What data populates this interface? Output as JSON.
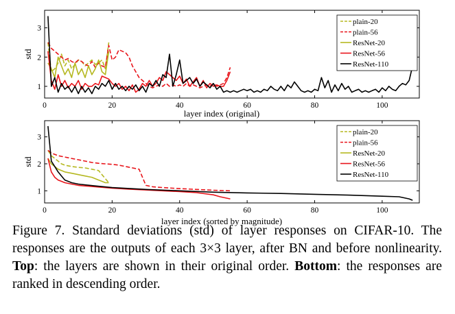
{
  "chart_data": [
    {
      "type": "line",
      "title": "",
      "xlabel": "layer index (original)",
      "ylabel": "std",
      "xlim": [
        0,
        111
      ],
      "ylim": [
        0.6,
        3.6
      ],
      "xticks": [
        0,
        20,
        40,
        60,
        80,
        100
      ],
      "yticks": [
        1,
        2,
        3
      ],
      "legend_position": "top-right",
      "series": [
        {
          "name": "plain-20",
          "color": "#b5b820",
          "dash": "6,3",
          "x": [
            1,
            2,
            3,
            4,
            5,
            6,
            7,
            8,
            9,
            10,
            11,
            12,
            13,
            14,
            15,
            16,
            17,
            18,
            19
          ],
          "y": [
            2.5,
            1.5,
            1.6,
            1.8,
            2.1,
            1.7,
            1.9,
            1.6,
            1.75,
            1.9,
            1.85,
            1.7,
            1.8,
            1.9,
            1.75,
            1.8,
            1.9,
            1.6,
            2.5
          ]
        },
        {
          "name": "plain-56",
          "color": "#e8141a",
          "dash": "6,3",
          "x": [
            1,
            2,
            3,
            4,
            5,
            6,
            7,
            8,
            9,
            10,
            11,
            12,
            13,
            14,
            15,
            16,
            17,
            18,
            19,
            20,
            21,
            22,
            23,
            24,
            25,
            26,
            27,
            28,
            29,
            30,
            31,
            32,
            33,
            34,
            35,
            36,
            37,
            38,
            39,
            40,
            41,
            42,
            43,
            44,
            45,
            46,
            47,
            48,
            49,
            50,
            51,
            52,
            53,
            54,
            55
          ],
          "y": [
            2.5,
            2.3,
            2.2,
            2.1,
            2.0,
            1.9,
            1.95,
            1.85,
            1.8,
            1.9,
            1.85,
            1.75,
            1.7,
            1.85,
            1.65,
            1.8,
            1.7,
            1.65,
            2.4,
            1.9,
            2.0,
            2.25,
            2.2,
            2.15,
            2.0,
            1.7,
            1.5,
            1.3,
            1.2,
            1.1,
            1.0,
            0.95,
            1.0,
            1.05,
            1.0,
            1.1,
            1.0,
            1.05,
            1.0,
            1.05,
            1.0,
            1.1,
            1.0,
            1.05,
            1.0,
            0.95,
            1.0,
            1.05,
            1.0,
            1.1,
            1.0,
            1.05,
            1.1,
            1.3,
            1.65
          ]
        },
        {
          "name": "ResNet-20",
          "color": "#b5b820",
          "dash": "",
          "x": [
            1,
            2,
            3,
            4,
            5,
            6,
            7,
            8,
            9,
            10,
            11,
            12,
            13,
            14,
            15,
            16,
            17,
            18,
            19
          ],
          "y": [
            1.8,
            1.6,
            1.3,
            2.0,
            1.7,
            1.4,
            1.6,
            1.3,
            1.8,
            1.4,
            1.6,
            1.3,
            1.7,
            1.4,
            1.6,
            1.9,
            1.5,
            1.4,
            2.2
          ]
        },
        {
          "name": "ResNet-56",
          "color": "#e8141a",
          "dash": "",
          "x": [
            1,
            2,
            3,
            4,
            5,
            6,
            7,
            8,
            9,
            10,
            11,
            12,
            13,
            14,
            15,
            16,
            17,
            18,
            19,
            20,
            21,
            22,
            23,
            24,
            25,
            26,
            27,
            28,
            29,
            30,
            31,
            32,
            33,
            34,
            35,
            36,
            37,
            38,
            39,
            40,
            41,
            42,
            43,
            44,
            45,
            46,
            47,
            48,
            49,
            50,
            51,
            52,
            53,
            54,
            55
          ],
          "y": [
            2.2,
            1.2,
            0.9,
            1.4,
            1.0,
            1.2,
            0.95,
            1.1,
            1.0,
            1.2,
            0.9,
            1.1,
            1.0,
            1.0,
            1.1,
            1.05,
            1.35,
            1.3,
            1.25,
            1.1,
            1.0,
            1.1,
            0.9,
            1.0,
            0.85,
            1.05,
            0.8,
            0.9,
            1.1,
            1.0,
            1.2,
            1.0,
            1.1,
            1.3,
            1.2,
            1.5,
            1.4,
            1.3,
            1.2,
            1.35,
            1.1,
            1.25,
            1.0,
            1.15,
            1.3,
            1.0,
            1.2,
            0.95,
            1.1,
            1.0,
            1.05,
            1.0,
            1.0,
            1.2,
            1.5
          ]
        },
        {
          "name": "ResNet-110",
          "color": "#000000",
          "dash": "",
          "x": [
            1,
            2,
            3,
            4,
            5,
            6,
            7,
            8,
            9,
            10,
            11,
            12,
            13,
            14,
            15,
            16,
            17,
            18,
            19,
            20,
            21,
            22,
            23,
            24,
            25,
            26,
            27,
            28,
            29,
            30,
            31,
            32,
            33,
            34,
            35,
            36,
            37,
            38,
            39,
            40,
            41,
            42,
            43,
            44,
            45,
            46,
            47,
            48,
            49,
            50,
            51,
            52,
            53,
            54,
            55,
            56,
            57,
            58,
            59,
            60,
            61,
            62,
            63,
            64,
            65,
            66,
            67,
            68,
            69,
            70,
            71,
            72,
            73,
            74,
            75,
            76,
            77,
            78,
            79,
            80,
            81,
            82,
            83,
            84,
            85,
            86,
            87,
            88,
            89,
            90,
            91,
            92,
            93,
            94,
            95,
            96,
            97,
            98,
            99,
            100,
            101,
            102,
            103,
            104,
            105,
            106,
            107,
            108,
            109
          ],
          "y": [
            3.4,
            1.0,
            1.3,
            0.8,
            1.1,
            0.9,
            1.0,
            0.8,
            1.0,
            0.75,
            1.0,
            0.8,
            0.95,
            0.75,
            1.0,
            0.9,
            1.1,
            1.0,
            1.2,
            0.9,
            1.1,
            0.9,
            1.0,
            0.85,
            1.0,
            0.9,
            1.05,
            0.85,
            1.0,
            0.8,
            1.1,
            1.0,
            1.2,
            1.0,
            1.4,
            1.3,
            2.1,
            1.0,
            1.4,
            1.9,
            1.1,
            1.2,
            1.3,
            1.1,
            1.25,
            1.0,
            1.15,
            1.05,
            0.95,
            1.1,
            0.9,
            1.0,
            0.8,
            0.85,
            0.8,
            0.85,
            0.8,
            0.85,
            0.9,
            0.85,
            0.9,
            0.8,
            0.85,
            0.8,
            0.9,
            0.85,
            1.0,
            0.9,
            0.85,
            1.0,
            0.85,
            1.05,
            0.95,
            1.15,
            1.0,
            0.85,
            0.8,
            0.85,
            0.8,
            0.9,
            0.85,
            1.3,
            0.95,
            1.2,
            0.8,
            1.05,
            0.85,
            1.1,
            0.9,
            1.0,
            0.8,
            0.85,
            0.9,
            0.8,
            0.85,
            0.8,
            0.85,
            0.9,
            0.8,
            0.95,
            0.85,
            1.0,
            0.9,
            0.85,
            1.0,
            1.1,
            1.05,
            1.2,
            1.7
          ]
        }
      ]
    },
    {
      "type": "line",
      "title": "",
      "xlabel": "layer index (sorted by magnitude)",
      "ylabel": "std",
      "xlim": [
        0,
        111
      ],
      "ylim": [
        0.55,
        3.6
      ],
      "xticks": [
        0,
        20,
        40,
        60,
        80,
        100
      ],
      "yticks": [
        1,
        2,
        3
      ],
      "legend_position": "top-right",
      "series": [
        {
          "name": "plain-20",
          "color": "#b5b820",
          "dash": "6,3",
          "x": [
            1,
            2,
            3,
            4,
            5,
            6,
            8,
            10,
            12,
            14,
            16,
            17,
            18,
            19
          ],
          "y": [
            2.5,
            2.3,
            2.2,
            2.1,
            2.0,
            1.95,
            1.9,
            1.87,
            1.85,
            1.8,
            1.75,
            1.6,
            1.45,
            1.3
          ]
        },
        {
          "name": "plain-56",
          "color": "#e8141a",
          "dash": "6,3",
          "x": [
            1,
            2,
            4,
            6,
            8,
            10,
            12,
            14,
            16,
            18,
            20,
            22,
            24,
            26,
            28,
            29,
            30,
            32,
            35,
            40,
            45,
            50,
            55
          ],
          "y": [
            2.5,
            2.4,
            2.3,
            2.25,
            2.2,
            2.15,
            2.1,
            2.05,
            2.02,
            2.0,
            1.98,
            1.95,
            1.9,
            1.85,
            1.8,
            1.5,
            1.2,
            1.15,
            1.12,
            1.08,
            1.05,
            1.02,
            1.0
          ]
        },
        {
          "name": "ResNet-20",
          "color": "#b5b820",
          "dash": "",
          "x": [
            1,
            2,
            3,
            4,
            6,
            8,
            10,
            12,
            14,
            15,
            16,
            17,
            18,
            19
          ],
          "y": [
            2.2,
            2.0,
            1.9,
            1.8,
            1.7,
            1.65,
            1.6,
            1.55,
            1.5,
            1.45,
            1.4,
            1.35,
            1.3,
            1.3
          ]
        },
        {
          "name": "ResNet-56",
          "color": "#e8141a",
          "dash": "",
          "x": [
            1,
            2,
            3,
            4,
            5,
            6,
            8,
            10,
            15,
            20,
            25,
            30,
            35,
            40,
            45,
            50,
            52,
            55
          ],
          "y": [
            2.2,
            1.7,
            1.5,
            1.4,
            1.35,
            1.3,
            1.25,
            1.2,
            1.15,
            1.1,
            1.06,
            1.03,
            1.0,
            0.97,
            0.93,
            0.85,
            0.78,
            0.7
          ]
        },
        {
          "name": "ResNet-110",
          "color": "#000000",
          "dash": "",
          "x": [
            1,
            2,
            3,
            4,
            5,
            6,
            7,
            8,
            10,
            15,
            20,
            30,
            40,
            50,
            60,
            70,
            80,
            90,
            100,
            105,
            108,
            109
          ],
          "y": [
            3.4,
            2.1,
            1.9,
            1.7,
            1.55,
            1.4,
            1.35,
            1.3,
            1.25,
            1.18,
            1.12,
            1.05,
            1.0,
            0.95,
            0.92,
            0.9,
            0.87,
            0.84,
            0.8,
            0.78,
            0.7,
            0.65
          ]
        }
      ]
    }
  ],
  "caption": {
    "prefix": "Figure 7. Standard deviations (std) of layer responses on CIFAR-10. The responses are the outputs of each 3×3 layer, after BN and before nonlinearity.",
    "top_label": "Top",
    "top_text": ": the layers are shown in their original order.",
    "bottom_label": "Bottom",
    "bottom_text": ": the responses are ranked in descending order."
  }
}
